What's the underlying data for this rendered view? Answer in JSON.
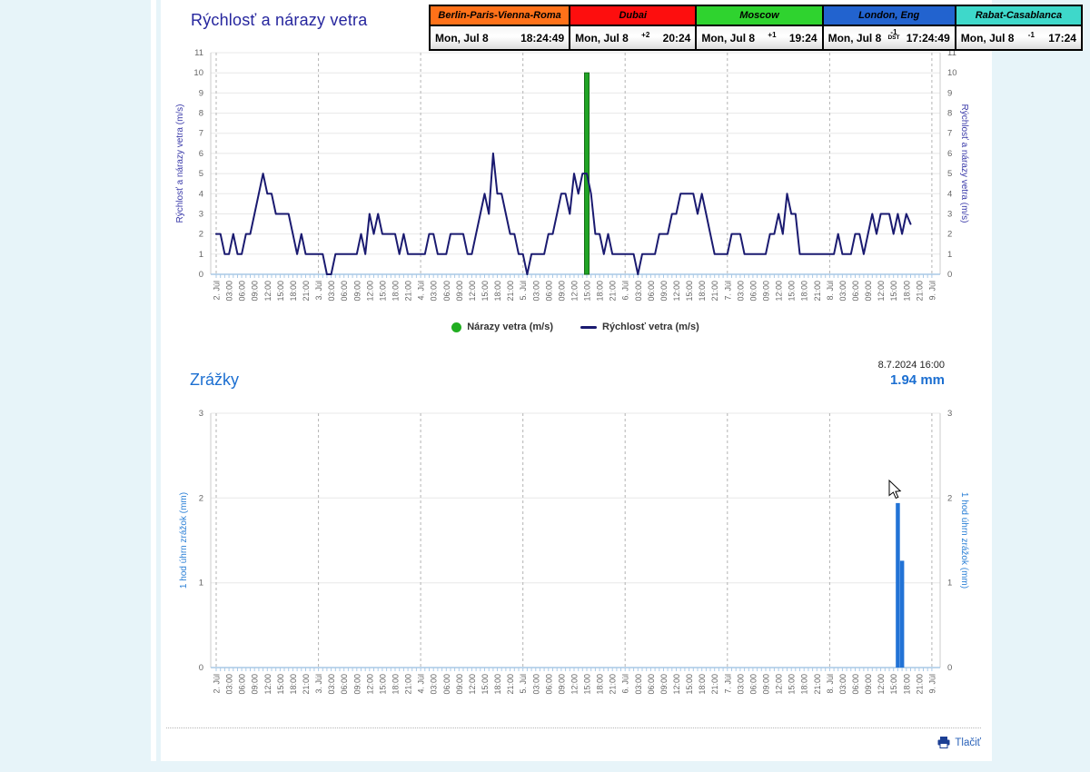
{
  "page": {
    "print_label": "Tlačiť"
  },
  "clock": {
    "cities": [
      {
        "name": "Berlin-Paris-Vienna-Roma",
        "header_color": "#ff7119",
        "date": "Mon, Jul 8",
        "utc_offset": "",
        "offset_note": "",
        "time": "18:24:49"
      },
      {
        "name": "Dubai",
        "header_color": "#fd0e0e",
        "date": "Mon, Jul 8",
        "utc_offset": "+2",
        "offset_note": "",
        "time": "20:24"
      },
      {
        "name": "Moscow",
        "header_color": "#2fd32f",
        "date": "Mon, Jul 8",
        "utc_offset": "+1",
        "offset_note": "",
        "time": "19:24"
      },
      {
        "name": "London, Eng",
        "header_color": "#2263cf",
        "date": "Mon, Jul 8",
        "utc_offset": "-1",
        "offset_note": "DST",
        "time": "17:24:49"
      },
      {
        "name": "Rabat-Casablanca",
        "header_color": "#3ed8ca",
        "date": "Mon, Jul 8",
        "utc_offset": "-1",
        "time": "17:24"
      }
    ]
  },
  "chart_data": [
    {
      "type": "line",
      "title": "Rýchlosť a nárazy vetra",
      "ylabel": "Rýchlosť a nárazy vetra (m/s)",
      "ylim": [
        0,
        11
      ],
      "yticks": [
        0,
        1,
        2,
        3,
        4,
        5,
        6,
        7,
        8,
        9,
        10,
        11
      ],
      "grid": true,
      "legend_position": "bottom",
      "x_start": "2. Júl 00:00",
      "x_interval_hours": 1,
      "xticklabels": [
        "2. Júl",
        "03:00",
        "06:00",
        "09:00",
        "12:00",
        "15:00",
        "18:00",
        "21:00",
        "3. Júl",
        "03:00",
        "06:00",
        "09:00",
        "12:00",
        "15:00",
        "18:00",
        "21:00",
        "4. Júl",
        "03:00",
        "06:00",
        "09:00",
        "12:00",
        "15:00",
        "18:00",
        "21:00",
        "5. Júl",
        "03:00",
        "06:00",
        "09:00",
        "12:00",
        "15:00",
        "18:00",
        "21:00",
        "6. Júl",
        "03:00",
        "06:00",
        "09:00",
        "12:00",
        "15:00",
        "18:00",
        "21:00",
        "7. Júl",
        "03:00",
        "06:00",
        "09:00",
        "12:00",
        "15:00",
        "18:00",
        "21:00",
        "8. Júl",
        "03:00",
        "06:00",
        "09:00",
        "12:00",
        "15:00",
        "18:00",
        "21:00",
        "9. Júl"
      ],
      "series": [
        {
          "name": "Rýchlosť vetra (m/s)",
          "type": "line",
          "color": "#1a1a70",
          "values": [
            2,
            2,
            1,
            1,
            2,
            1,
            1,
            2,
            2,
            3,
            4,
            5,
            4,
            4,
            3,
            3,
            3,
            3,
            2,
            1,
            2,
            1,
            1,
            1,
            1,
            1,
            0,
            0,
            1,
            1,
            1,
            1,
            1,
            1,
            2,
            1,
            3,
            2,
            3,
            2,
            2,
            2,
            2,
            1,
            2,
            1,
            1,
            1,
            1,
            1,
            2,
            2,
            1,
            1,
            1,
            2,
            2,
            2,
            2,
            1,
            1,
            2,
            3,
            4,
            3,
            6,
            4,
            4,
            3,
            2,
            2,
            1,
            1,
            0,
            1,
            1,
            1,
            1,
            2,
            2,
            3,
            4,
            4,
            3,
            5,
            4,
            5,
            5,
            4,
            2,
            2,
            1,
            2,
            1,
            1,
            1,
            1,
            1,
            1,
            0,
            1,
            1,
            1,
            1,
            2,
            2,
            2,
            3,
            3,
            4,
            4,
            4,
            4,
            3,
            4,
            3,
            2,
            1,
            1,
            1,
            1,
            2,
            2,
            2,
            1,
            1,
            1,
            1,
            1,
            1,
            2,
            2,
            3,
            2,
            4,
            3,
            3,
            1,
            1,
            1,
            1,
            1,
            1,
            1,
            1,
            1,
            2,
            1,
            1,
            1,
            2,
            2,
            1,
            2,
            3,
            2,
            3,
            3,
            3,
            2,
            3,
            2,
            3,
            2.5
          ]
        },
        {
          "name": "Nárazy vetra (m/s)",
          "type": "column",
          "color": "#21a426",
          "points": [
            {
              "hour": 87,
              "value": 10
            }
          ]
        }
      ],
      "legend": [
        {
          "label": "Nárazy vetra (m/s)",
          "marker": "circle",
          "color": "#21ae21"
        },
        {
          "label": "Rýchlosť vetra (m/s)",
          "marker": "line",
          "color": "#1a1a70"
        }
      ]
    },
    {
      "type": "bar",
      "title": "Zrážky",
      "ylabel": "1 hod úhrn zrážok (mm)",
      "ylim": [
        0,
        3
      ],
      "yticks": [
        0,
        1,
        2,
        3
      ],
      "grid": true,
      "color": "#2273d6",
      "x_start": "2. Júl 00:00",
      "x_interval_hours": 1,
      "xticklabels": [
        "2. Júl",
        "03:00",
        "06:00",
        "09:00",
        "12:00",
        "15:00",
        "18:00",
        "21:00",
        "3. Júl",
        "03:00",
        "06:00",
        "09:00",
        "12:00",
        "15:00",
        "18:00",
        "21:00",
        "4. Júl",
        "03:00",
        "06:00",
        "09:00",
        "12:00",
        "15:00",
        "18:00",
        "21:00",
        "5. Júl",
        "03:00",
        "06:00",
        "09:00",
        "12:00",
        "15:00",
        "18:00",
        "21:00",
        "6. Júl",
        "03:00",
        "06:00",
        "09:00",
        "12:00",
        "15:00",
        "18:00",
        "21:00",
        "7. Júl",
        "03:00",
        "06:00",
        "09:00",
        "12:00",
        "15:00",
        "18:00",
        "21:00",
        "8. Júl",
        "03:00",
        "06:00",
        "09:00",
        "12:00",
        "15:00",
        "18:00",
        "21:00",
        "9. Júl"
      ],
      "bars": [
        {
          "hour": 160,
          "value": 1.94
        },
        {
          "hour": 161,
          "value": 1.26
        }
      ],
      "tooltip": {
        "datetime": "8.7.2024 16:00",
        "value_label": "1.94 mm"
      }
    }
  ]
}
